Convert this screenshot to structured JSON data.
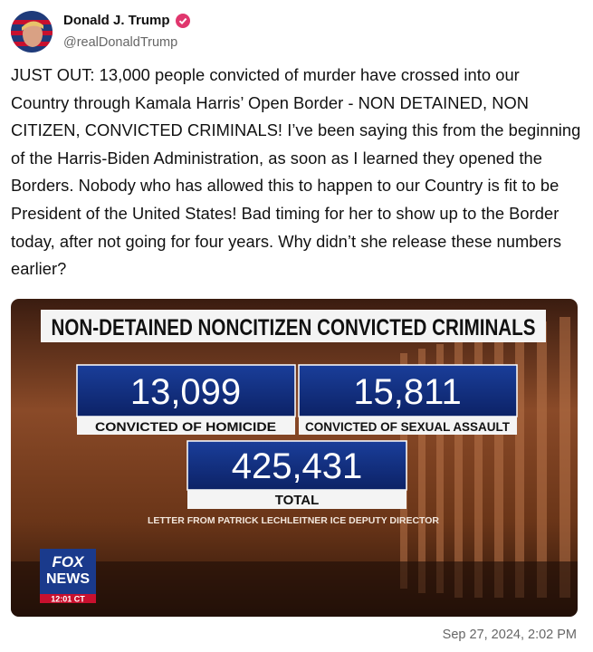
{
  "post": {
    "author": {
      "name": "Donald J. Trump",
      "handle": "@realDonaldTrump"
    },
    "body": "JUST OUT: 13,000 people convicted of murder have crossed into our Country through Kamala Harris’ Open Border - NON DETAINED, NON CITIZEN, CONVICTED CRIMINALS! I’ve been saying this from the beginning of the Harris-Biden Administration, as soon as I learned they opened the Borders. Nobody who has allowed this to happen to our Country is fit to be President of the United States! Bad timing for her to show up to the Border today, after not going for four years. Why didn’t she release these numbers earlier?",
    "image": {
      "title": "NON-DETAINED NONCITIZEN CONVICTED CRIMINALS",
      "stats": [
        {
          "value": "13,099",
          "label": "CONVICTED OF HOMICIDE"
        },
        {
          "value": "15,811",
          "label": "CONVICTED OF SEXUAL ASSAULT"
        }
      ],
      "total": {
        "value": "425,431",
        "label": "TOTAL"
      },
      "source": "LETTER FROM PATRICK LECHLEITNER ICE DEPUTY DIRECTOR",
      "logo": {
        "line1": "FOX",
        "line2": "NEWS",
        "time": "12:01 CT"
      }
    },
    "timestamp": "Sep 27, 2024, 2:02 PM"
  }
}
